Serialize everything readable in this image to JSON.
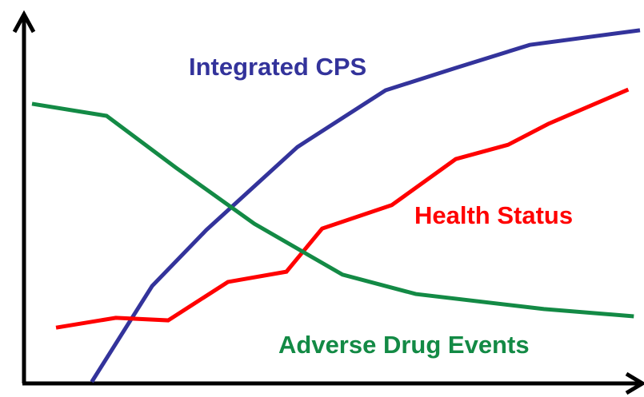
{
  "chart_data": {
    "type": "line",
    "xlim": [
      0,
      100
    ],
    "ylim": [
      0,
      100
    ],
    "series": [
      {
        "name": "Integrated CPS",
        "color": "#33339b",
        "x": [
          11.0,
          20.8,
          29.6,
          44.4,
          58.7,
          70.1,
          82.1,
          100
        ],
        "values": [
          0,
          26.2,
          41.5,
          64.2,
          79.7,
          85.8,
          92.1,
          96.1
        ]
      },
      {
        "name": "Health Status",
        "color": "#ff0000",
        "x": [
          5.2,
          14.9,
          23.4,
          33.1,
          42.6,
          48.4,
          59.7,
          70.1,
          78.6,
          85.1,
          98.1
        ],
        "values": [
          14.8,
          17.5,
          16.8,
          27.3,
          30.1,
          41.9,
          48.3,
          60.9,
          64.8,
          70.5,
          79.9
        ]
      },
      {
        "name": "Adverse Drug Events",
        "color": "#138a45",
        "x": [
          1.3,
          13.4,
          24.7,
          37.4,
          51.7,
          63.6,
          84.4,
          99.0
        ],
        "values": [
          76.0,
          72.7,
          58.5,
          43.2,
          29.3,
          24.0,
          19.9,
          17.9
        ]
      }
    ]
  }
}
